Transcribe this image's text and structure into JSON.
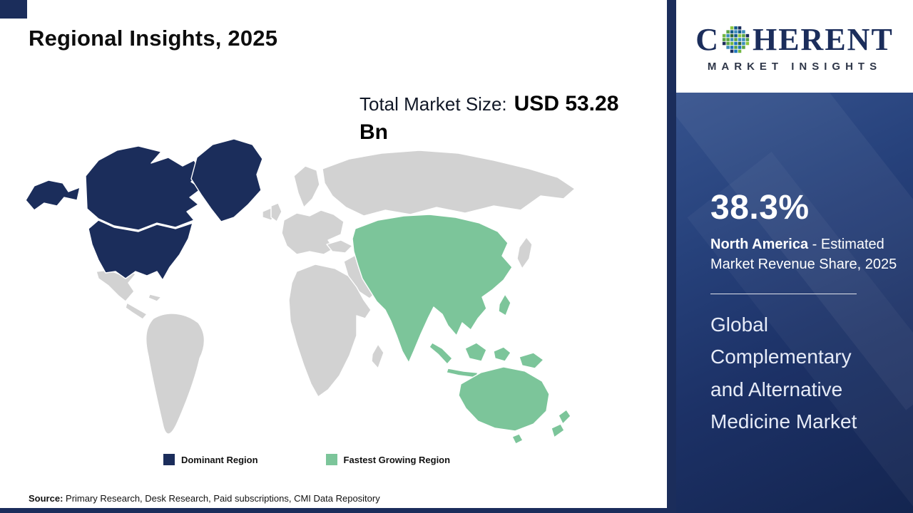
{
  "title": "Regional Insights, 2025",
  "market_size": {
    "label": "Total Market Size:",
    "value": "USD 53.28 Bn"
  },
  "map": {
    "base_land_color": "#d2d2d2",
    "legend": [
      {
        "label": "Dominant Region",
        "color": "#1b2d5b"
      },
      {
        "label": "Fastest Growing Region",
        "color": "#7cc59a"
      }
    ]
  },
  "side_panel": {
    "background": "#1d3465",
    "share_value": "38.3%",
    "share_region": "North America",
    "share_desc_rest": " - Estimated Market Revenue Share, 2025",
    "market_name": "Global Complementary and Alternative Medicine Market"
  },
  "logo": {
    "line1_prefix": "C",
    "line1_suffix": "HERENT",
    "line2": "MARKET INSIGHTS",
    "color": "#1b2d5b",
    "mosaic_palette": [
      "#2d6a30",
      "#5ba545",
      "#8dc63f",
      "#1b75bc",
      "#1b2d5b",
      "#3c8dbc",
      "#74b744",
      "#145a8a"
    ]
  },
  "source": {
    "label": "Source:",
    "text": " Primary Research, Desk Research, Paid subscriptions, CMI Data Repository"
  },
  "chart_data": {
    "type": "map",
    "title": "Regional Insights, 2025",
    "total_market_size_2025": "USD 53.28 Bn",
    "market": "Global Complementary and Alternative Medicine Market",
    "regions": [
      {
        "name": "North America",
        "classification": "Dominant Region",
        "color": "#1b2d5b",
        "estimated_market_revenue_share_2025_pct": 38.3
      },
      {
        "name": "Asia Pacific",
        "classification": "Fastest Growing Region",
        "color": "#7cc59a"
      }
    ],
    "legend_position": "bottom"
  }
}
